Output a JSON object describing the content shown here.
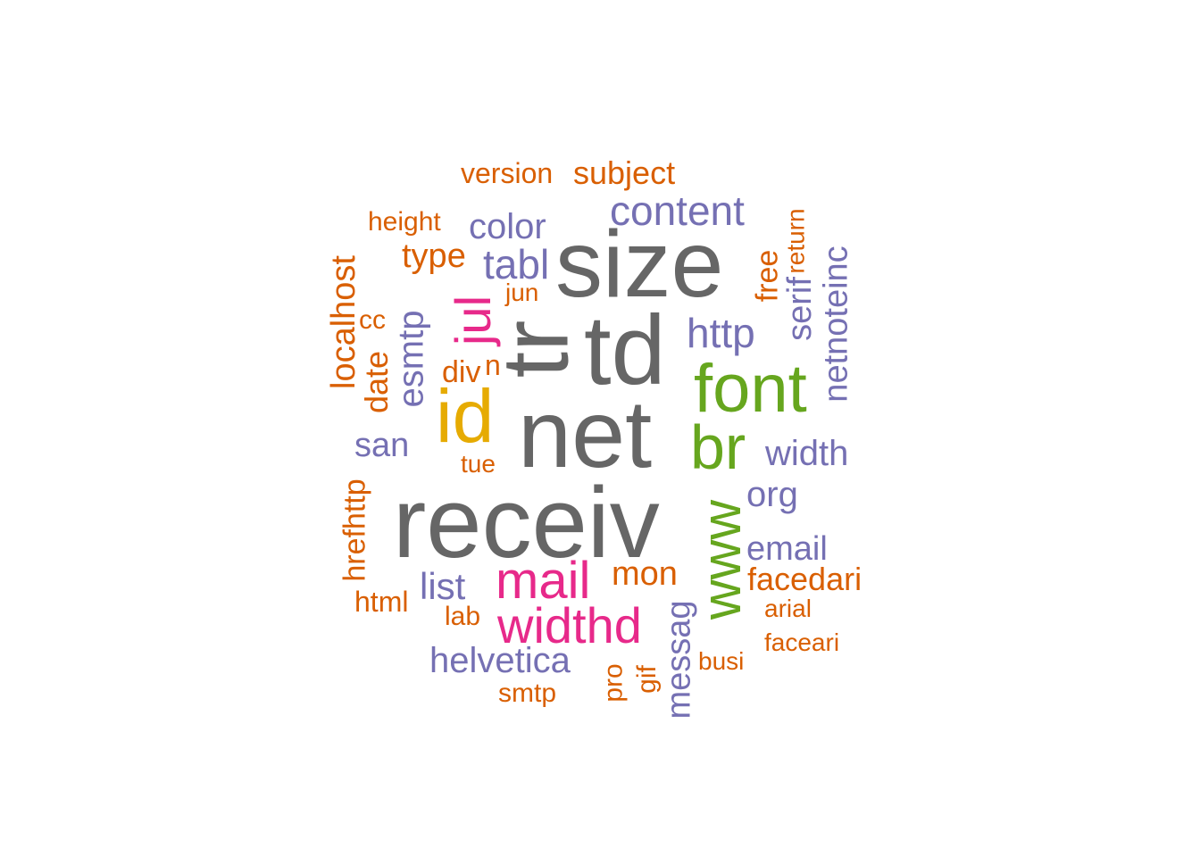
{
  "palette": {
    "gray": "#666666",
    "orange": "#D95F02",
    "purple": "#7570B3",
    "pink": "#E7298A",
    "green": "#66A61E",
    "gold": "#E6AB02"
  },
  "words": [
    {
      "id": "receiv",
      "text": "receiv",
      "color": "gray"
    },
    {
      "id": "net",
      "text": "net",
      "color": "gray"
    },
    {
      "id": "size",
      "text": "size",
      "color": "gray"
    },
    {
      "id": "tr",
      "text": "tr",
      "color": "gray"
    },
    {
      "id": "td",
      "text": "td",
      "color": "gray"
    },
    {
      "id": "font",
      "text": "font",
      "color": "green"
    },
    {
      "id": "br",
      "text": "br",
      "color": "green"
    },
    {
      "id": "www",
      "text": "www",
      "color": "green"
    },
    {
      "id": "id",
      "text": "id",
      "color": "gold"
    },
    {
      "id": "jul",
      "text": "jul",
      "color": "pink"
    },
    {
      "id": "mail",
      "text": "mail",
      "color": "pink"
    },
    {
      "id": "widthd",
      "text": "widthd",
      "color": "pink"
    },
    {
      "id": "content",
      "text": "content",
      "color": "purple"
    },
    {
      "id": "color",
      "text": "color",
      "color": "purple"
    },
    {
      "id": "tabl",
      "text": "tabl",
      "color": "purple"
    },
    {
      "id": "http",
      "text": "http",
      "color": "purple"
    },
    {
      "id": "esmtp",
      "text": "esmtp",
      "color": "purple"
    },
    {
      "id": "san",
      "text": "san",
      "color": "purple"
    },
    {
      "id": "width",
      "text": "width",
      "color": "purple"
    },
    {
      "id": "org",
      "text": "org",
      "color": "purple"
    },
    {
      "id": "email",
      "text": "email",
      "color": "purple"
    },
    {
      "id": "list",
      "text": "list",
      "color": "purple"
    },
    {
      "id": "helvetica",
      "text": "helvetica",
      "color": "purple"
    },
    {
      "id": "messag",
      "text": "messag",
      "color": "purple"
    },
    {
      "id": "serif",
      "text": "serif",
      "color": "purple"
    },
    {
      "id": "netnoteinc",
      "text": "netnoteinc",
      "color": "purple"
    },
    {
      "id": "version",
      "text": "version",
      "color": "orange"
    },
    {
      "id": "subject",
      "text": "subject",
      "color": "orange"
    },
    {
      "id": "height",
      "text": "height",
      "color": "orange"
    },
    {
      "id": "type",
      "text": "type",
      "color": "orange"
    },
    {
      "id": "localhost",
      "text": "localhost",
      "color": "orange"
    },
    {
      "id": "cc",
      "text": "cc",
      "color": "orange"
    },
    {
      "id": "jun",
      "text": "jun",
      "color": "orange"
    },
    {
      "id": "div",
      "text": "div",
      "color": "orange"
    },
    {
      "id": "n",
      "text": "n",
      "color": "orange"
    },
    {
      "id": "date",
      "text": "date",
      "color": "orange"
    },
    {
      "id": "tue",
      "text": "tue",
      "color": "orange"
    },
    {
      "id": "free",
      "text": "free",
      "color": "orange"
    },
    {
      "id": "return",
      "text": "return",
      "color": "orange"
    },
    {
      "id": "hrefhttp",
      "text": "hrefhttp",
      "color": "orange"
    },
    {
      "id": "html",
      "text": "html",
      "color": "orange"
    },
    {
      "id": "lab",
      "text": "lab",
      "color": "orange"
    },
    {
      "id": "mon",
      "text": "mon",
      "color": "orange"
    },
    {
      "id": "facedari",
      "text": "facedari",
      "color": "orange"
    },
    {
      "id": "arial",
      "text": "arial",
      "color": "orange"
    },
    {
      "id": "faceari",
      "text": "faceari",
      "color": "orange"
    },
    {
      "id": "busi",
      "text": "busi",
      "color": "orange"
    },
    {
      "id": "smtp",
      "text": "smtp",
      "color": "orange"
    },
    {
      "id": "pro",
      "text": "pro",
      "color": "orange"
    },
    {
      "id": "gif",
      "text": "gif",
      "color": "orange"
    }
  ]
}
